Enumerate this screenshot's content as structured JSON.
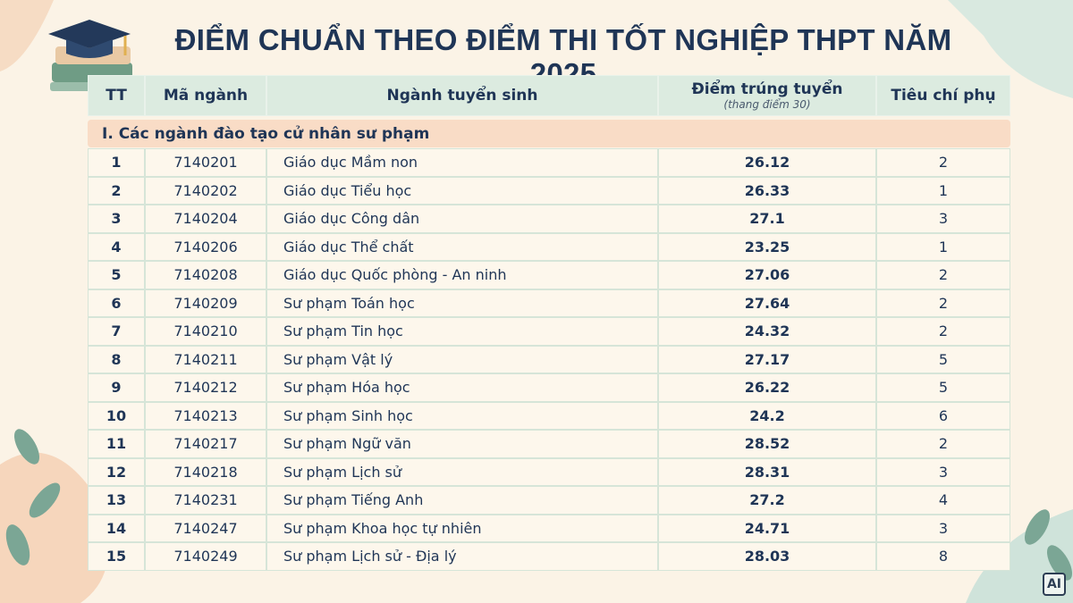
{
  "header": {
    "title": "ĐIỂM CHUẨN THEO ĐIỂM THI TỐT NGHIỆP THPT NĂM 2025"
  },
  "table": {
    "columns": [
      "TT",
      "Mã ngành",
      "Ngành tuyển sinh",
      "Điểm trúng tuyển",
      "Tiêu chí phụ"
    ],
    "score_note": "(thang điểm 30)",
    "section": "I. Các ngành đào tạo cử nhân sư phạm",
    "rows": [
      [
        "1",
        "7140201",
        "Giáo dục Mầm non",
        "26.12",
        "2"
      ],
      [
        "2",
        "7140202",
        "Giáo dục Tiểu học",
        "26.33",
        "1"
      ],
      [
        "3",
        "7140204",
        "Giáo dục Công dân",
        "27.1",
        "3"
      ],
      [
        "4",
        "7140206",
        "Giáo dục Thể chất",
        "23.25",
        "1"
      ],
      [
        "5",
        "7140208",
        "Giáo dục Quốc phòng - An ninh",
        "27.06",
        "2"
      ],
      [
        "6",
        "7140209",
        "Sư phạm Toán học",
        "27.64",
        "2"
      ],
      [
        "7",
        "7140210",
        "Sư phạm Tin học",
        "24.32",
        "2"
      ],
      [
        "8",
        "7140211",
        "Sư phạm Vật lý",
        "27.17",
        "5"
      ],
      [
        "9",
        "7140212",
        "Sư phạm Hóa học",
        "26.22",
        "5"
      ],
      [
        "10",
        "7140213",
        "Sư phạm Sinh học",
        "24.2",
        "6"
      ],
      [
        "11",
        "7140217",
        "Sư phạm Ngữ văn",
        "28.52",
        "2"
      ],
      [
        "12",
        "7140218",
        "Sư phạm Lịch sử",
        "28.31",
        "3"
      ],
      [
        "13",
        "7140231",
        "Sư phạm Tiếng Anh",
        "27.2",
        "4"
      ],
      [
        "14",
        "7140247",
        "Sư phạm Khoa học tự nhiên",
        "24.71",
        "3"
      ],
      [
        "15",
        "7140249",
        "Sư phạm Lịch sử - Địa lý",
        "28.03",
        "8"
      ]
    ]
  },
  "badge": "AI"
}
